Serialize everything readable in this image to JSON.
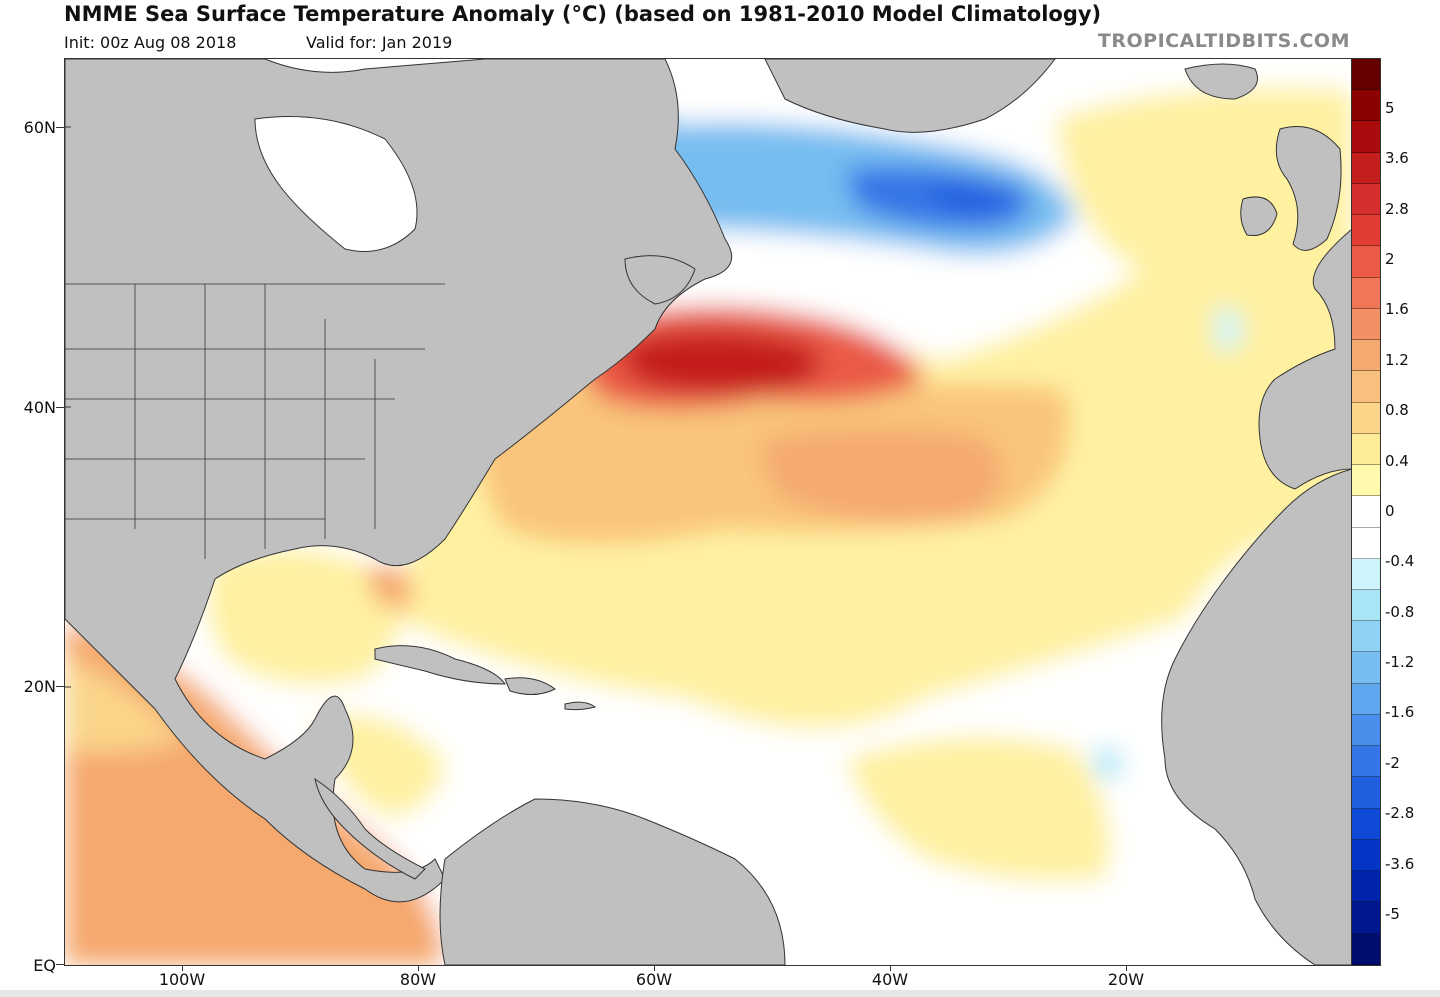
{
  "header": {
    "title": "NMME Sea Surface Temperature Anomaly (°C) (based on 1981-2010 Model Climatology)",
    "init": "Init: 00z Aug 08 2018",
    "valid": "Valid for: Jan 2019",
    "brand": "TROPICALTIDBITS.COM"
  },
  "map": {
    "lat_labels": [
      "60N",
      "40N",
      "20N",
      "EQ"
    ],
    "lon_labels": [
      "100W",
      "80W",
      "60W",
      "40W",
      "20W"
    ]
  },
  "colorbar": {
    "labels": [
      "5",
      "3.6",
      "2.8",
      "2",
      "1.6",
      "1.2",
      "0.8",
      "0.4",
      "0",
      "-0.4",
      "-0.8",
      "-1.2",
      "-1.6",
      "-2",
      "-2.8",
      "-3.6",
      "-5"
    ],
    "colors": [
      "#650000",
      "#8b0000",
      "#a80c0c",
      "#c41f1f",
      "#d52e2e",
      "#e23d35",
      "#ea5a47",
      "#ef7758",
      "#f29064",
      "#f5a96e",
      "#f7c07c",
      "#fad58a",
      "#fcec98",
      "#fff9ae",
      "#ffffff",
      "#ffffff",
      "#cdf4fb",
      "#a8e6f7",
      "#8ed2f4",
      "#76bdf1",
      "#5ea6ee",
      "#488eea",
      "#3476e6",
      "#2060e0",
      "#0f4ad6",
      "#0535c6",
      "#0224ad",
      "#00178f",
      "#000d6f"
    ]
  }
}
